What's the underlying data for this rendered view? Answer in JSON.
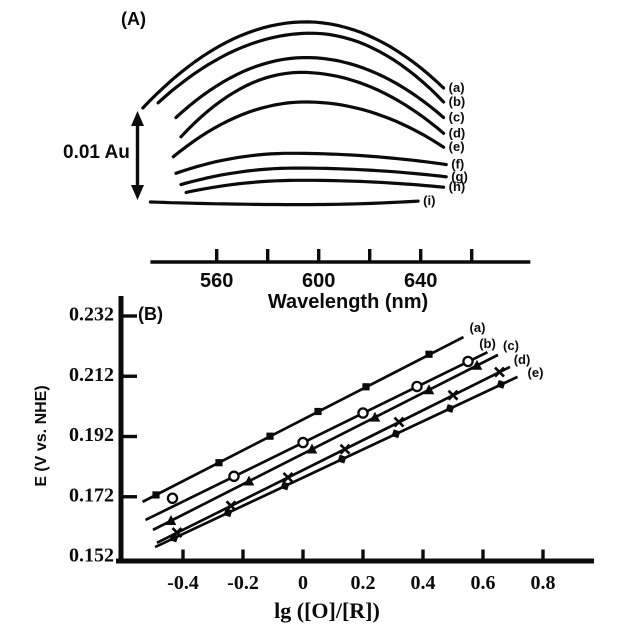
{
  "ink_color": "#0b0b0b",
  "chart_data": [
    {
      "id": "panel_a",
      "type": "line",
      "panel_label": "(A)",
      "xlabel": "Wavelength (nm)",
      "ylabel": "",
      "y_unit": "Au (relative absorbance)",
      "scale_bar_label": "0.01 Au",
      "scale_bar_au": 0.01,
      "xlim": [
        534,
        683
      ],
      "x_ticks": [
        560,
        580,
        600,
        620,
        640,
        660
      ],
      "x_tick_labels": [
        {
          "value": 560,
          "label": "560"
        },
        {
          "value": 600,
          "label": "600"
        },
        {
          "value": 640,
          "label": "640"
        }
      ],
      "curves": [
        {
          "label": "(a)",
          "points": [
            [
              531,
              0.0108
            ],
            [
              595,
              0.0207
            ],
            [
              649,
              0.0131
            ]
          ]
        },
        {
          "label": "(b)",
          "points": [
            [
              537,
              0.0114
            ],
            [
              597,
              0.0194
            ],
            [
              649,
              0.0115
            ]
          ]
        },
        {
          "label": "(c)",
          "points": [
            [
              544,
              0.0097
            ],
            [
              595,
              0.0166
            ],
            [
              649,
              0.0097
            ]
          ]
        },
        {
          "label": "(d)",
          "points": [
            [
              546,
              0.0075
            ],
            [
              593,
              0.0149
            ],
            [
              649,
              0.0079
            ]
          ]
        },
        {
          "label": "(e)",
          "points": [
            [
              543,
              0.0052
            ],
            [
              595,
              0.0115
            ],
            [
              649,
              0.0063
            ]
          ]
        },
        {
          "label": "(f)",
          "points": [
            [
              544,
              0.0033
            ],
            [
              589,
              0.0056
            ],
            [
              650,
              0.0043
            ]
          ]
        },
        {
          "label": "(g)",
          "points": [
            [
              546,
              0.002
            ],
            [
              591,
              0.0039
            ],
            [
              650,
              0.0029
            ]
          ]
        },
        {
          "label": "(h)",
          "points": [
            [
              548,
              0.0011
            ],
            [
              593,
              0.0025
            ],
            [
              649,
              0.0017
            ]
          ]
        },
        {
          "label": "(i)",
          "points": [
            [
              534,
              0.0
            ],
            [
              593,
              -0.0003
            ],
            [
              639,
              0.0001
            ]
          ]
        }
      ]
    },
    {
      "id": "panel_b",
      "type": "scatter",
      "panel_label": "(B)",
      "xlabel": "lg ([O]/[R])",
      "ylabel": "E (V vs. NHE)",
      "xlim": [
        -0.62,
        0.97
      ],
      "ylim": [
        0.149,
        0.236
      ],
      "x_ticks": [
        -0.4,
        -0.2,
        0,
        0.2,
        0.4,
        0.6,
        0.8
      ],
      "x_tick_labels": [
        "-0.4",
        "-0.2",
        "0",
        "0.2",
        "0.4",
        "0.6",
        "0.8"
      ],
      "y_ticks": [
        0.232,
        0.212,
        0.192,
        0.172,
        0.152
      ],
      "y_tick_labels": [
        "0.232",
        "0.212",
        "0.192",
        "0.172",
        "0.152"
      ],
      "series": [
        {
          "label": "(a)",
          "marker": "square",
          "line": [
            [
              -0.535,
              0.1703
            ],
            [
              0.535,
              0.225
            ]
          ],
          "points": [
            [
              -0.49,
              0.1726
            ],
            [
              -0.28,
              0.1833
            ],
            [
              -0.11,
              0.1921
            ],
            [
              0.05,
              0.2003
            ],
            [
              0.21,
              0.2085
            ],
            [
              0.42,
              0.2193
            ]
          ]
        },
        {
          "label": "(b)",
          "marker": "circle-open",
          "line": [
            [
              -0.525,
              0.1643
            ],
            [
              0.615,
              0.22
            ]
          ],
          "points": [
            [
              -0.435,
              0.1715
            ],
            [
              -0.23,
              0.1788
            ],
            [
              0.0,
              0.19
            ],
            [
              0.2,
              0.1998
            ],
            [
              0.38,
              0.2086
            ],
            [
              0.55,
              0.2169
            ]
          ]
        },
        {
          "label": "(c)",
          "marker": "triangle",
          "line": [
            [
              -0.5,
              0.161
            ],
            [
              0.65,
              0.2191
            ]
          ],
          "points": [
            [
              -0.44,
              0.1641
            ],
            [
              -0.18,
              0.1772
            ],
            [
              0.03,
              0.1878
            ],
            [
              0.24,
              0.1984
            ],
            [
              0.42,
              0.2075
            ],
            [
              0.58,
              0.2156
            ]
          ]
        },
        {
          "label": "(d)",
          "marker": "cross",
          "line": [
            [
              -0.487,
              0.1567
            ],
            [
              0.69,
              0.2151
            ]
          ],
          "points": [
            [
              -0.42,
              0.1601
            ],
            [
              -0.24,
              0.169
            ],
            [
              -0.05,
              0.1784
            ],
            [
              0.14,
              0.1878
            ],
            [
              0.32,
              0.1968
            ],
            [
              0.5,
              0.2057
            ],
            [
              0.655,
              0.2134
            ]
          ]
        },
        {
          "label": "(e)",
          "marker": "square-tilted",
          "line": [
            [
              -0.493,
              0.1553
            ],
            [
              0.715,
              0.2118
            ]
          ],
          "points": [
            [
              -0.43,
              0.1583
            ],
            [
              -0.25,
              0.1667
            ],
            [
              -0.06,
              0.1756
            ],
            [
              0.13,
              0.1845
            ],
            [
              0.31,
              0.1929
            ],
            [
              0.49,
              0.2013
            ],
            [
              0.66,
              0.2093
            ]
          ]
        }
      ]
    }
  ]
}
